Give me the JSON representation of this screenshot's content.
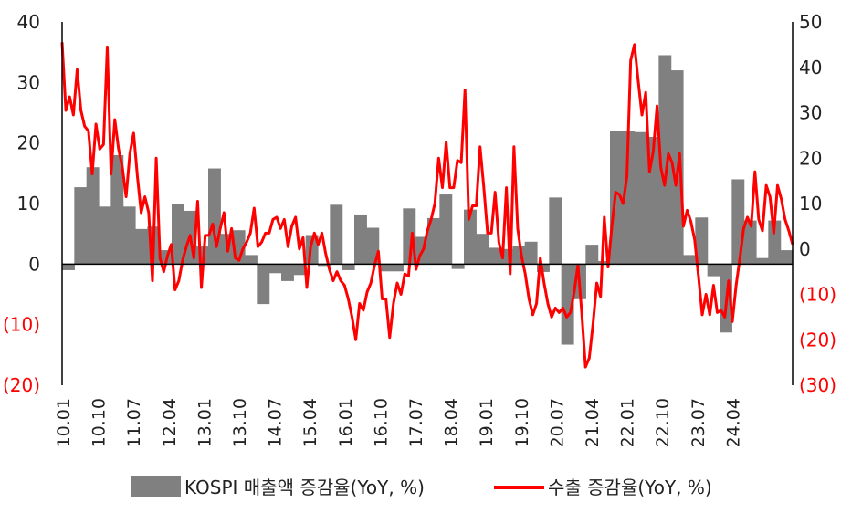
{
  "chart_data": {
    "type": "area",
    "x_tick_labels": [
      "10.01",
      "10.10",
      "11.07",
      "12.04",
      "13.01",
      "13.10",
      "14.07",
      "15.04",
      "16.01",
      "16.10",
      "17.07",
      "18.04",
      "19.01",
      "19.10",
      "20.07",
      "21.04",
      "22.01",
      "22.10",
      "23.07",
      "24.04"
    ],
    "y_left": {
      "min": -20,
      "max": 40,
      "step": 10,
      "tick_labels": [
        "(20)",
        "(10)",
        "0",
        "10",
        "20",
        "30",
        "40"
      ],
      "tick_colors": [
        "#ff0000",
        "#ff0000",
        "#222222",
        "#222222",
        "#222222",
        "#222222",
        "#222222"
      ]
    },
    "y_right": {
      "min": -30,
      "max": 50,
      "step": 10,
      "tick_labels": [
        "(30)",
        "(20)",
        "(10)",
        "0",
        "10",
        "20",
        "30",
        "40",
        "50"
      ],
      "tick_colors": [
        "#ff0000",
        "#ff0000",
        "#ff0000",
        "#222222",
        "#222222",
        "#222222",
        "#222222",
        "#222222",
        "#222222"
      ]
    },
    "series": [
      {
        "name": "KOSPI 매출액 증감율(YoY, %)",
        "axis": "left",
        "kind": "step-area",
        "color": "#808080",
        "values": [
          -1,
          12.7,
          16,
          9.5,
          18,
          9.5,
          5.8,
          6.2,
          2.3,
          10,
          8.8,
          2.9,
          15.8,
          5,
          5.6,
          1.5,
          -6.6,
          -1.5,
          -2.8,
          -1.8,
          4.8,
          -0.3,
          9.8,
          -1,
          8.2,
          6,
          -1.2,
          -1.2,
          9.2,
          4.5,
          7.6,
          11.5,
          -0.8,
          9,
          5,
          2.7,
          2.5,
          3,
          3.7,
          -1.3,
          11,
          -13.3,
          -5.8,
          3.2,
          0.5,
          22,
          22,
          21.8,
          21,
          34.5,
          32,
          1.5,
          7.7,
          -2,
          -11.3,
          14,
          7.2,
          1,
          7.2,
          2.3
        ]
      },
      {
        "name": "수출 증감율(YoY, %)",
        "axis": "right",
        "kind": "line",
        "color": "#ff0000",
        "values": [
          45.5,
          30.5,
          33.5,
          29.5,
          39.5,
          30.5,
          27,
          26,
          16.5,
          27.5,
          22,
          23,
          44.5,
          16.5,
          28.5,
          22,
          18,
          11.5,
          21,
          25.5,
          16,
          8,
          11.5,
          8,
          -7,
          20,
          -2,
          -5,
          -1.5,
          1,
          -9,
          -7,
          -2.5,
          0.5,
          3,
          -2,
          10.5,
          -8.5,
          3,
          3,
          5.5,
          0.5,
          4.5,
          8,
          -0.5,
          4.5,
          -2,
          -2.5,
          0,
          1.5,
          3.5,
          9,
          0.5,
          1.5,
          3.5,
          3.5,
          6.5,
          7,
          4.5,
          6.5,
          0.5,
          5,
          7,
          0,
          2.5,
          -8.5,
          0.5,
          3.5,
          1,
          3.5,
          -1,
          -4.5,
          -7,
          -5,
          -7,
          -8,
          -11,
          -15,
          -20,
          -12,
          -13.5,
          -9.5,
          -7.5,
          -3.5,
          -0.5,
          -11,
          -11,
          -19.5,
          -12,
          -7.5,
          -10,
          -5.5,
          -6,
          3.5,
          -4.5,
          -1.5,
          0,
          4,
          6.5,
          10,
          20,
          13.5,
          23.5,
          13.5,
          13.5,
          19.5,
          19,
          35,
          6.5,
          9.5,
          9.5,
          22.5,
          13.5,
          3.5,
          3.5,
          12.5,
          1.5,
          -2,
          13.5,
          -5.5,
          22.5,
          4.5,
          -1.5,
          -5.5,
          -11,
          -14.5,
          -12,
          -2,
          -7.5,
          -12,
          -15,
          -13,
          -14,
          -13,
          -15,
          -14,
          -9.5,
          -3.5,
          -14,
          -26,
          -24,
          -16.5,
          -7.5,
          -10.5,
          7,
          -4,
          5,
          12.5,
          12,
          10,
          16,
          41.5,
          45,
          37,
          29.5,
          34.5,
          17,
          21.5,
          31.5,
          18,
          14,
          21,
          19,
          14,
          21,
          5,
          8.5,
          6,
          2,
          -6,
          -14.5,
          -10,
          -14.5,
          -8,
          -14,
          -13.5,
          -15,
          -7,
          -16,
          -8,
          -2,
          4.5,
          7,
          5,
          17,
          6.5,
          4,
          14,
          11.5,
          3.5,
          14,
          11,
          6.5,
          4,
          1
        ]
      }
    ],
    "legend": {
      "placement": "bottom"
    }
  }
}
